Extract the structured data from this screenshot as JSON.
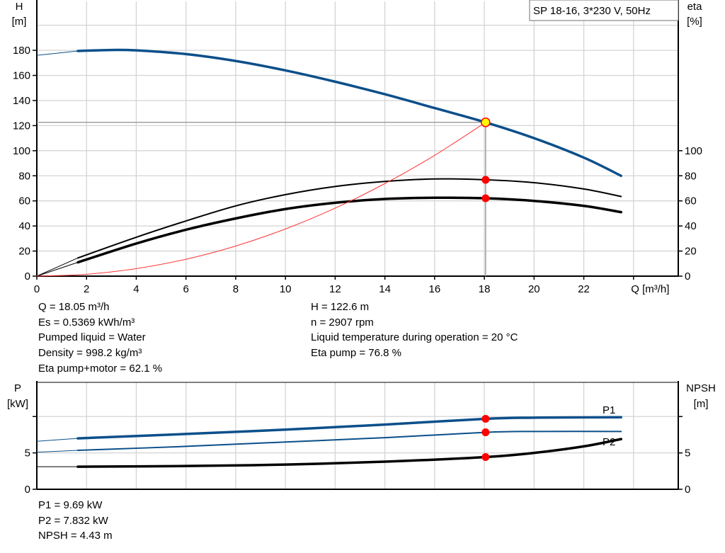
{
  "chart_data": [
    {
      "type": "line",
      "title": "SP 18-16, 3*230 V, 50Hz",
      "xlabel": "Q [m³/h]",
      "ylabel_left": [
        "H",
        "[m]"
      ],
      "ylabel_right": [
        "eta",
        "[%]"
      ],
      "xlim": [
        0,
        25.8
      ],
      "ylim": [
        0,
        219
      ],
      "xticks": [
        0,
        2,
        4,
        6,
        8,
        10,
        12,
        14,
        16,
        18,
        20,
        22
      ],
      "xgrid": [
        2,
        4,
        6,
        8,
        10,
        12,
        14,
        16,
        18,
        20,
        22,
        24
      ],
      "yticks_left": [
        0,
        20,
        40,
        60,
        80,
        100,
        120,
        140,
        160,
        180
      ],
      "yticks_right": [
        0,
        20,
        40,
        60,
        80,
        100
      ],
      "ygrid": [
        20,
        40,
        60,
        80,
        100,
        120,
        140,
        160,
        180,
        200
      ],
      "grid": true,
      "legend": "top-right",
      "series": [
        {
          "key": "H",
          "color": "#0b4f8a",
          "thin": [
            [
              0,
              176
            ],
            [
              1.65,
              179.5
            ]
          ],
          "points": [
            [
              1.65,
              179.5
            ],
            [
              3,
              180.3
            ],
            [
              4,
              180
            ],
            [
              6,
              177
            ],
            [
              8,
              171.5
            ],
            [
              10,
              164
            ],
            [
              12,
              155
            ],
            [
              14,
              145
            ],
            [
              16,
              134
            ],
            [
              18.05,
              122.6
            ],
            [
              20,
              110
            ],
            [
              22,
              94.5
            ],
            [
              23.5,
              80
            ]
          ]
        },
        {
          "key": "eta_pump",
          "color": "#000000",
          "thin": [
            [
              0,
              0
            ],
            [
              1.65,
              14.5
            ]
          ],
          "points": [
            [
              1.65,
              14.5
            ],
            [
              4,
              31
            ],
            [
              6,
              44
            ],
            [
              8,
              56
            ],
            [
              10,
              65
            ],
            [
              12,
              71.5
            ],
            [
              14,
              75.5
            ],
            [
              16,
              77.5
            ],
            [
              18.05,
              76.8
            ],
            [
              20,
              74.5
            ],
            [
              22,
              69.5
            ],
            [
              23.5,
              63.5
            ]
          ]
        },
        {
          "key": "eta_total",
          "color": "#000000",
          "thin": [
            [
              0,
              0
            ],
            [
              1.65,
              11
            ]
          ],
          "points": [
            [
              1.65,
              11
            ],
            [
              4,
              26
            ],
            [
              6,
              37
            ],
            [
              8,
              46
            ],
            [
              10,
              53.5
            ],
            [
              12,
              58.5
            ],
            [
              14,
              61.5
            ],
            [
              16,
              62.5
            ],
            [
              18.05,
              62.1
            ],
            [
              20,
              60
            ],
            [
              22,
              56
            ],
            [
              23.5,
              51
            ]
          ]
        },
        {
          "key": "system_curve",
          "color": "#ff3333",
          "points": [
            [
              0,
              0
            ],
            [
              2,
              1.5
            ],
            [
              4,
              6
            ],
            [
              6,
              13.5
            ],
            [
              8,
              24
            ],
            [
              10,
              37.6
            ],
            [
              12,
              54.2
            ],
            [
              14,
              73.8
            ],
            [
              16,
              96.3
            ],
            [
              18.05,
              122.6
            ]
          ]
        }
      ],
      "duty_point": {
        "Q": 18.05,
        "H": 122.6,
        "eta_pump": 76.8,
        "eta_total": 62.1
      }
    },
    {
      "type": "line",
      "ylabel_left": [
        "P",
        "[kW]"
      ],
      "ylabel_right": [
        "NPSH",
        "[m]"
      ],
      "xlim": [
        0,
        25.8
      ],
      "ylim": [
        0,
        14.7
      ],
      "xgrid": [
        2,
        4,
        6,
        8,
        10,
        12,
        14,
        16,
        18,
        20,
        22,
        24
      ],
      "yticks_left": [
        0,
        5
      ],
      "yticks_right": [
        0,
        5
      ],
      "ygrid": [
        5,
        10
      ],
      "grid": true,
      "series": [
        {
          "name": "P1",
          "color": "#0b4f8a",
          "thin": [
            [
              0,
              6.6
            ],
            [
              1.65,
              7.0
            ]
          ],
          "points": [
            [
              1.65,
              7.0
            ],
            [
              6,
              7.6
            ],
            [
              10,
              8.2
            ],
            [
              14,
              8.9
            ],
            [
              18.05,
              9.69
            ],
            [
              20,
              9.85
            ],
            [
              23.5,
              9.9
            ]
          ]
        },
        {
          "name": "P2",
          "color": "#0b4f8a",
          "thin": [
            [
              0,
              5.1
            ],
            [
              1.65,
              5.35
            ]
          ],
          "points": [
            [
              1.65,
              5.35
            ],
            [
              6,
              5.9
            ],
            [
              10,
              6.5
            ],
            [
              14,
              7.1
            ],
            [
              18.05,
              7.83
            ],
            [
              20,
              7.95
            ],
            [
              23.5,
              7.95
            ]
          ]
        },
        {
          "key": "NPSH",
          "color": "#000000",
          "thin": [
            [
              0,
              3.1
            ],
            [
              1.65,
              3.1
            ]
          ],
          "points": [
            [
              1.65,
              3.1
            ],
            [
              6,
              3.2
            ],
            [
              10,
              3.4
            ],
            [
              14,
              3.8
            ],
            [
              18.05,
              4.43
            ],
            [
              20,
              5.0
            ],
            [
              22,
              5.9
            ],
            [
              23.5,
              6.9
            ]
          ]
        }
      ],
      "duty_point": {
        "Q": 18.05,
        "P1": 9.69,
        "P2": 7.832,
        "NPSH": 4.43
      }
    }
  ],
  "info_top_left": [
    "Q = 18.05 m³/h",
    "Es = 0.5369 kWh/m³",
    "Pumped liquid = Water",
    "Density = 998.2 kg/m³",
    "Eta pump+motor = 62.1 %"
  ],
  "info_top_right": [
    "H = 122.6 m",
    "n = 2907 rpm",
    "Liquid temperature during operation = 20 °C",
    "Eta pump = 76.8 %"
  ],
  "info_bottom": [
    "P1 = 9.69 kW",
    "P2 = 7.832 kW",
    "NPSH = 4.43 m"
  ],
  "colors": {
    "curve_blue": "#0b4f8a",
    "duty_marker": "#ff0000",
    "duty_point_fill": "#ffff00",
    "grid": "#d4d4d4"
  }
}
